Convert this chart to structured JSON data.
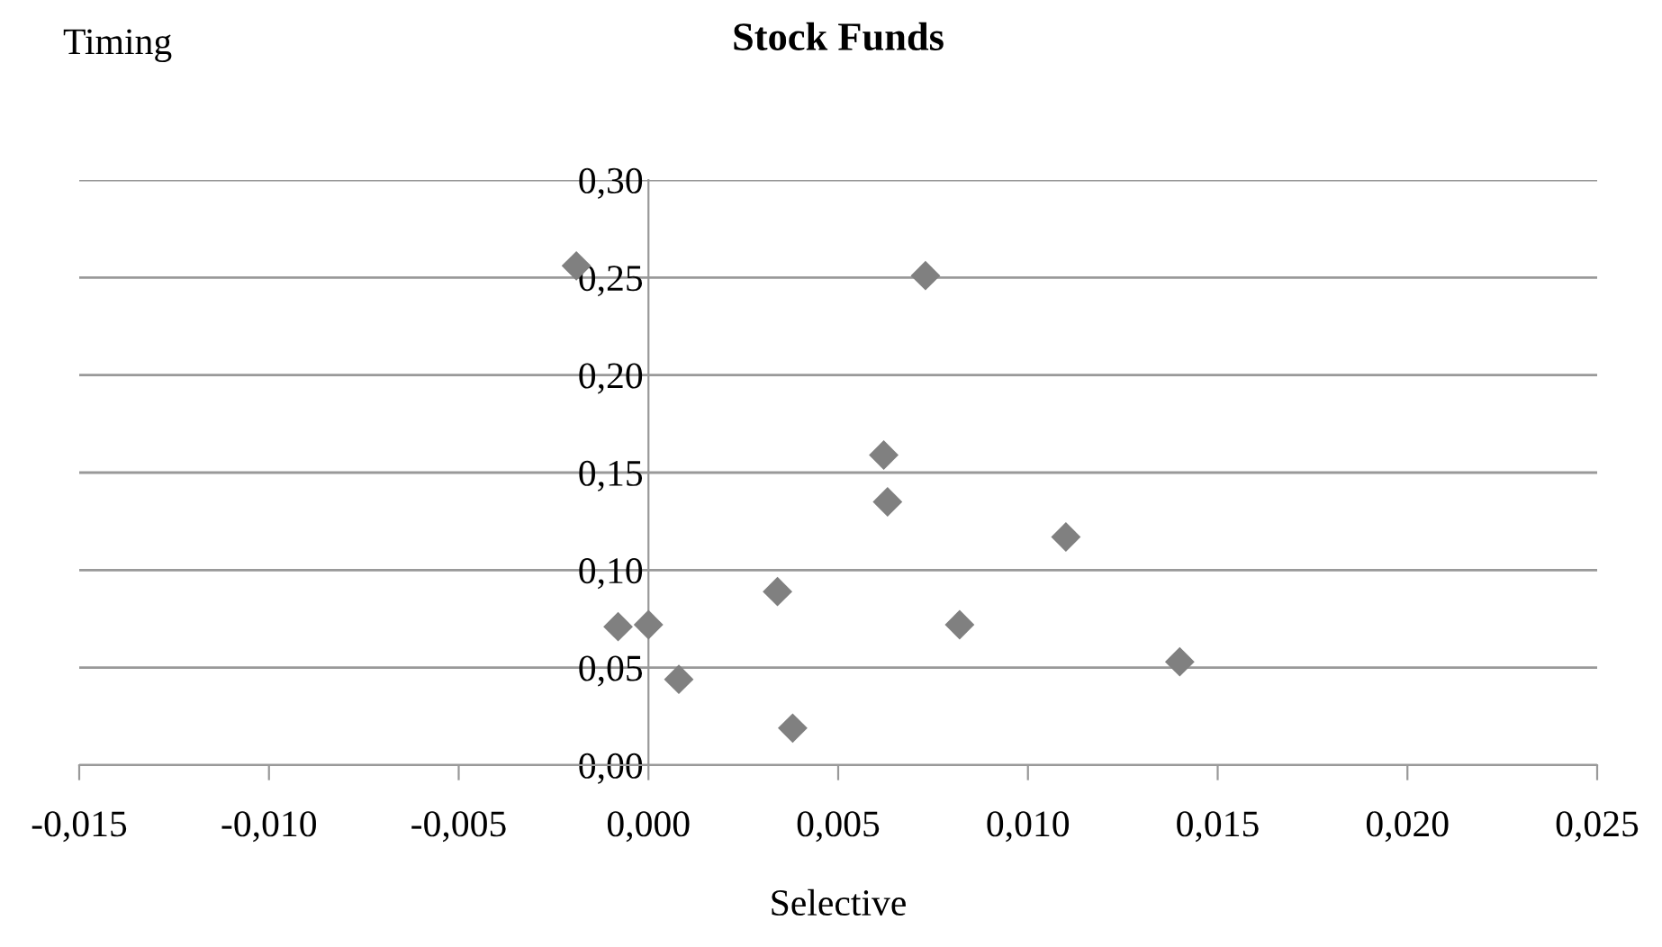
{
  "chart_data": {
    "type": "scatter",
    "title": "Stock Funds",
    "xlabel": "Selective",
    "ylabel": "Timing",
    "x": [
      -0.0019,
      0.0073,
      0.0062,
      0.0063,
      0.011,
      0.0034,
      -0.0008,
      0.0,
      0.0082,
      0.0008,
      0.0038,
      0.014
    ],
    "values": [
      0.256,
      0.251,
      0.159,
      0.135,
      0.117,
      0.089,
      0.071,
      0.072,
      0.072,
      0.044,
      0.019,
      0.053
    ],
    "color": "#808080",
    "marker": "diamond",
    "grid": "y",
    "legend": false,
    "xlim": [
      -0.015,
      0.025
    ],
    "ylim": [
      0,
      0.3
    ],
    "xticks": [
      {
        "value": -0.015,
        "label": "-0,015"
      },
      {
        "value": -0.01,
        "label": "-0,010"
      },
      {
        "value": -0.005,
        "label": "-0,005"
      },
      {
        "value": 0.0,
        "label": "0,000"
      },
      {
        "value": 0.005,
        "label": "0,005"
      },
      {
        "value": 0.01,
        "label": "0,010"
      },
      {
        "value": 0.015,
        "label": "0,015"
      },
      {
        "value": 0.02,
        "label": "0,020"
      },
      {
        "value": 0.025,
        "label": "0,025"
      }
    ],
    "yticks": [
      {
        "value": 0,
        "label": "0,00"
      },
      {
        "value": 0.05,
        "label": "0,05"
      },
      {
        "value": 0.1,
        "label": "0,10"
      },
      {
        "value": 0.15,
        "label": "0,15"
      },
      {
        "value": 0.2,
        "label": "0,20"
      },
      {
        "value": 0.25,
        "label": "0,25"
      },
      {
        "value": 0.3,
        "label": "0,30"
      }
    ]
  }
}
